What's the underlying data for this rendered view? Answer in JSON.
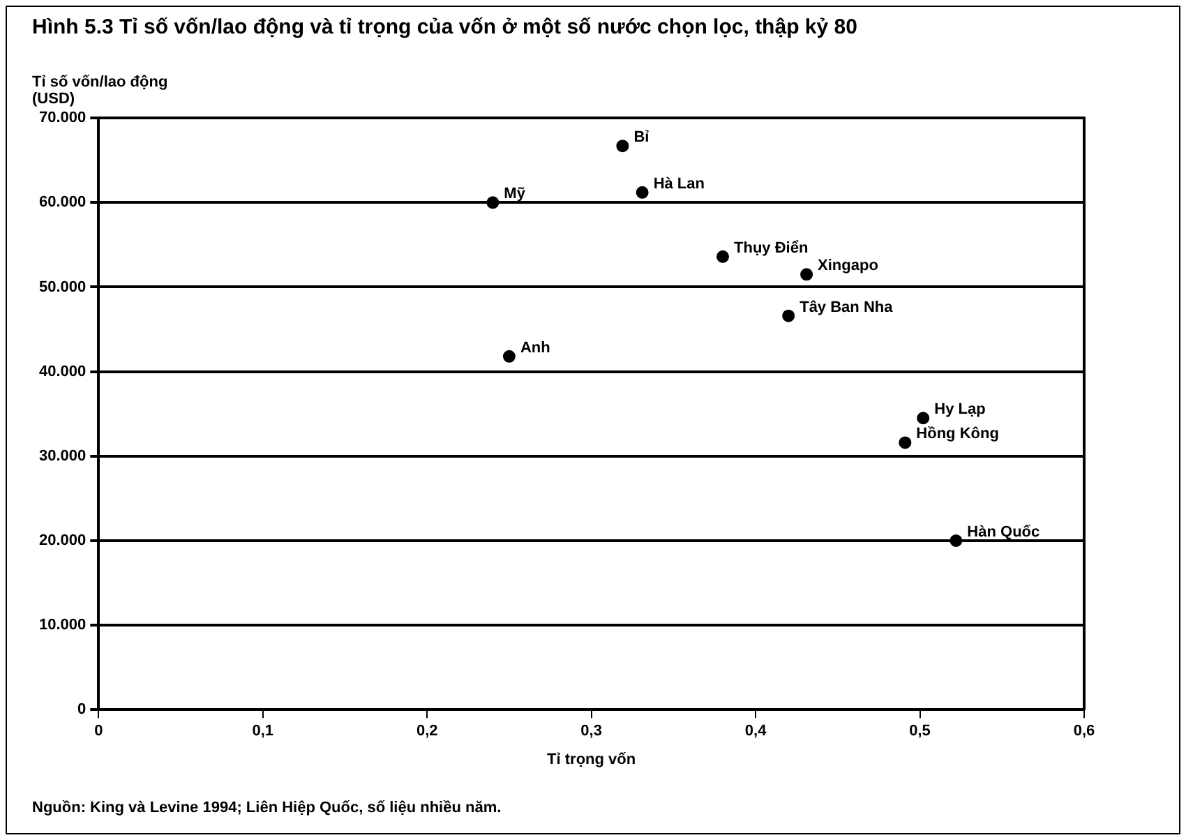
{
  "chart_data": {
    "type": "scatter",
    "title": "Hình 5.3  Tỉ số vốn/lao động và tỉ trọng của vốn ở một số nước chọn lọc, thập kỷ 80",
    "xlabel": "Tỉ trọng vốn",
    "ylabel": "Tỉ số vốn/lao động\n(USD)",
    "x": [
      0.319,
      0.331,
      0.24,
      0.25,
      0.38,
      0.431,
      0.42,
      0.502,
      0.491,
      0.522
    ],
    "series": [
      {
        "color": "#000000",
        "values": [
          66700,
          61200,
          60000,
          41800,
          53600,
          51500,
          46600,
          34500,
          31600,
          20000
        ]
      }
    ],
    "marker": "circle",
    "grid": "y",
    "xlim": [
      0,
      0.6
    ],
    "xticks": [
      0,
      {
        "value": 0.1,
        "label": "0,1"
      },
      {
        "value": 0.2,
        "label": "0,2"
      },
      {
        "value": 0.3,
        "label": "0,3"
      },
      {
        "value": 0.4,
        "label": "0,4"
      },
      {
        "value": 0.5,
        "label": "0,5"
      },
      {
        "value": 0.6,
        "label": "0,6"
      }
    ],
    "ylim": [
      0,
      70000
    ],
    "yticks": [
      0,
      {
        "value": 10000,
        "label": "10.000"
      },
      {
        "value": 20000,
        "label": "20.000"
      },
      {
        "value": 30000,
        "label": "30.000"
      },
      {
        "value": 40000,
        "label": "40.000"
      },
      {
        "value": 50000,
        "label": "50.000"
      },
      {
        "value": 60000,
        "label": "60.000"
      },
      {
        "value": 70000,
        "label": "70.000"
      }
    ],
    "annotations": [
      {
        "text": "Bỉ",
        "x": 0.319,
        "y": 66700
      },
      {
        "text": "Hà Lan",
        "x": 0.331,
        "y": 61200
      },
      {
        "text": "Mỹ",
        "x": 0.24,
        "y": 60000
      },
      {
        "text": "Anh",
        "x": 0.25,
        "y": 41800
      },
      {
        "text": "Thụy Điển",
        "x": 0.38,
        "y": 53600
      },
      {
        "text": "Xingapo",
        "x": 0.431,
        "y": 51500
      },
      {
        "text": "Tây Ban Nha",
        "x": 0.42,
        "y": 46600
      },
      {
        "text": "Hy Lạp",
        "x": 0.502,
        "y": 34500
      },
      {
        "text": "Hồng Kông",
        "x": 0.491,
        "y": 31600
      },
      {
        "text": "Hàn Quốc",
        "x": 0.522,
        "y": 20000
      },
      "Nguồn: King và Levine 1994; Liên Hiệp Quốc, số liệu nhiều năm."
    ]
  }
}
